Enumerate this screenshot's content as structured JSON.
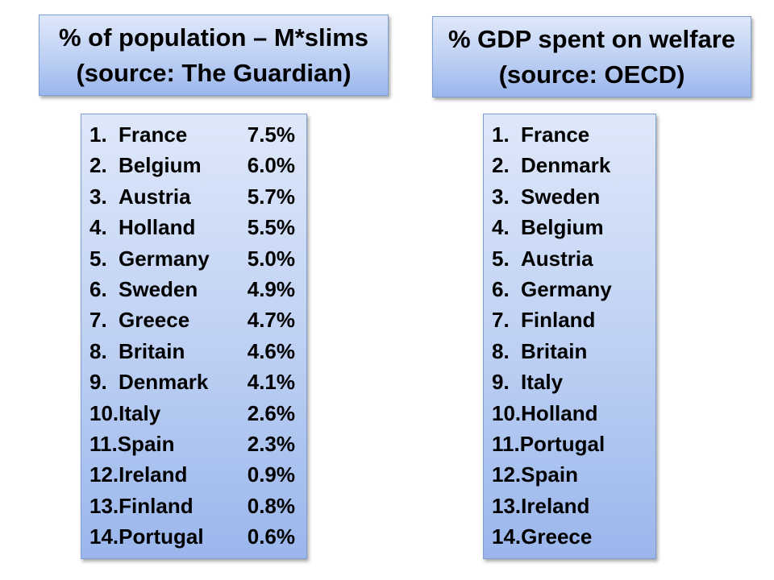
{
  "left": {
    "title_line1": "% of population – M*slims",
    "title_line2": "(source: The Guardian)",
    "items": [
      {
        "num": "1.",
        "country": "France",
        "pct": "7.5%"
      },
      {
        "num": "2.",
        "country": "Belgium",
        "pct": "6.0%"
      },
      {
        "num": "3.",
        "country": "Austria",
        "pct": "5.7%"
      },
      {
        "num": "4.",
        "country": "Holland",
        "pct": "5.5%"
      },
      {
        "num": "5.",
        "country": "Germany",
        "pct": "5.0%"
      },
      {
        "num": "6.",
        "country": "Sweden",
        "pct": "4.9%"
      },
      {
        "num": "7.",
        "country": "Greece",
        "pct": "4.7%"
      },
      {
        "num": "8.",
        "country": "Britain",
        "pct": "4.6%"
      },
      {
        "num": "9.",
        "country": "Denmark",
        "pct": "4.1%"
      },
      {
        "num": "10.",
        "country": "Italy",
        "pct": "2.6%"
      },
      {
        "num": "11.",
        "country": "Spain",
        "pct": "2.3%"
      },
      {
        "num": "12.",
        "country": "Ireland",
        "pct": "0.9%"
      },
      {
        "num": "13.",
        "country": "Finland",
        "pct": "0.8%"
      },
      {
        "num": "14.",
        "country": "Portugal",
        "pct": "0.6%"
      }
    ]
  },
  "right": {
    "title_line1": "% GDP spent on welfare",
    "title_line2": "(source: OECD)",
    "items": [
      {
        "num": "1.",
        "country": "France"
      },
      {
        "num": "2.",
        "country": "Denmark"
      },
      {
        "num": "3.",
        "country": "Sweden"
      },
      {
        "num": "4.",
        "country": "Belgium"
      },
      {
        "num": "5.",
        "country": "Austria"
      },
      {
        "num": "6.",
        "country": "Germany"
      },
      {
        "num": "7.",
        "country": "Finland"
      },
      {
        "num": "8.",
        "country": "Britain"
      },
      {
        "num": "9.",
        "country": "Italy"
      },
      {
        "num": "10.",
        "country": "Holland"
      },
      {
        "num": "11.",
        "country": "Portugal"
      },
      {
        "num": "12.",
        "country": "Spain"
      },
      {
        "num": "13.",
        "country": "Ireland"
      },
      {
        "num": "14.",
        "country": "Greece"
      }
    ]
  }
}
